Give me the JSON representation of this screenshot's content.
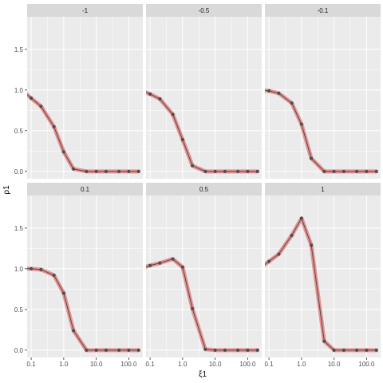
{
  "chart_data": {
    "type": "line",
    "xlabel": "ξ1",
    "ylabel": "ρ1",
    "x_scale": "log10",
    "x_ticks": [
      0.1,
      1.0,
      10.0,
      100.0
    ],
    "x_tick_labels": [
      "0.1",
      "1.0",
      "10.0",
      "100.0"
    ],
    "y_ticks": [
      0.0,
      0.5,
      1.0,
      1.5
    ],
    "y_tick_labels": [
      "0.0",
      "0.5",
      "1.0",
      "1.5"
    ],
    "ylim": [
      -0.09,
      1.9
    ],
    "xlim": [
      0.075,
      270
    ],
    "grid": true,
    "x": [
      0.05,
      0.1,
      0.2,
      0.5,
      1.0,
      2.0,
      5.0,
      10.0,
      20.0,
      50.0,
      100.0,
      200.0
    ],
    "colors": {
      "line": "#4d4d4d",
      "band": "#e57373",
      "panel_bg": "#ebebeb",
      "strip_bg": "#d9d9d9",
      "grid": "#ffffff"
    },
    "panels": [
      {
        "label": "-1",
        "values": [
          1.0,
          0.9,
          0.8,
          0.55,
          0.24,
          0.03,
          0.0,
          0.0,
          0.0,
          0.0,
          0.0,
          0.0
        ]
      },
      {
        "label": "-0.5",
        "values": [
          1.0,
          0.95,
          0.89,
          0.7,
          0.39,
          0.07,
          0.0,
          0.0,
          0.0,
          0.0,
          0.0,
          0.0
        ]
      },
      {
        "label": "-0.1",
        "values": [
          1.0,
          0.99,
          0.96,
          0.84,
          0.58,
          0.16,
          0.0,
          0.0,
          0.0,
          0.0,
          0.0,
          0.0
        ]
      },
      {
        "label": "0.1",
        "values": [
          1.0,
          1.0,
          0.99,
          0.92,
          0.7,
          0.24,
          0.0,
          0.0,
          0.0,
          0.0,
          0.0,
          0.0
        ]
      },
      {
        "label": "0.5",
        "values": [
          1.0,
          1.04,
          1.07,
          1.12,
          1.02,
          0.51,
          0.01,
          0.0,
          0.0,
          0.0,
          0.0,
          0.0
        ]
      },
      {
        "label": "1",
        "values": [
          1.0,
          1.09,
          1.18,
          1.41,
          1.62,
          1.29,
          0.11,
          0.0,
          0.0,
          0.0,
          0.0,
          0.0
        ]
      }
    ]
  }
}
